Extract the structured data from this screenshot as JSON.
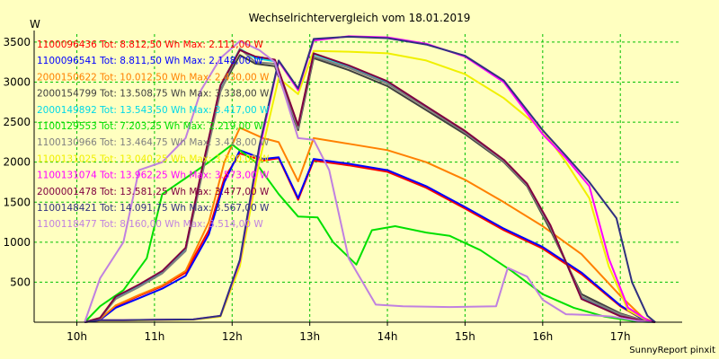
{
  "chart_data": {
    "type": "line",
    "title": "Wechselrichtervergleich vom 18.01.2019",
    "ylabel": "W",
    "xlabel": "",
    "footer": "SunnyReport pinxit",
    "ylim": [
      0,
      3600
    ],
    "xlim": [
      9.45,
      17.75
    ],
    "yticks": [
      500,
      1000,
      1500,
      2000,
      2500,
      3000,
      3500
    ],
    "xticks": [
      10,
      11,
      12,
      13,
      14,
      15,
      16,
      17
    ],
    "xtick_labels": [
      "10h",
      "11h",
      "12h",
      "13h",
      "14h",
      "15h",
      "16h",
      "17h"
    ],
    "grid": true,
    "legend_position": "top-left",
    "series": [
      {
        "name": "1100096436",
        "legend": "1100096436 Tot: 8.812,50 Wh Max: 2.111,00 W",
        "color": "#ff0000",
        "points": [
          [
            10.1,
            0
          ],
          [
            10.3,
            30
          ],
          [
            10.5,
            200
          ],
          [
            10.8,
            330
          ],
          [
            11.1,
            450
          ],
          [
            11.4,
            620
          ],
          [
            11.7,
            1150
          ],
          [
            11.9,
            1800
          ],
          [
            12.1,
            2110
          ],
          [
            12.4,
            2020
          ],
          [
            12.6,
            2050
          ],
          [
            12.85,
            1530
          ],
          [
            13.05,
            2020
          ],
          [
            13.5,
            1960
          ],
          [
            14,
            1880
          ],
          [
            14.5,
            1680
          ],
          [
            15,
            1420
          ],
          [
            15.5,
            1150
          ],
          [
            16,
            920
          ],
          [
            16.5,
            600
          ],
          [
            17,
            200
          ],
          [
            17.3,
            30
          ],
          [
            17.45,
            0
          ]
        ]
      },
      {
        "name": "1100096541",
        "legend": "1100096541 Tot: 8.811,50 Wh Max: 2.148,00 W",
        "color": "#0000ff",
        "points": [
          [
            10.1,
            0
          ],
          [
            10.3,
            30
          ],
          [
            10.5,
            180
          ],
          [
            10.8,
            300
          ],
          [
            11.1,
            420
          ],
          [
            11.4,
            580
          ],
          [
            11.7,
            1100
          ],
          [
            11.9,
            1750
          ],
          [
            12.1,
            2148
          ],
          [
            12.4,
            2040
          ],
          [
            12.6,
            2060
          ],
          [
            12.85,
            1550
          ],
          [
            13.05,
            2040
          ],
          [
            13.5,
            1980
          ],
          [
            14,
            1900
          ],
          [
            14.5,
            1700
          ],
          [
            15,
            1440
          ],
          [
            15.5,
            1170
          ],
          [
            16,
            940
          ],
          [
            16.5,
            620
          ],
          [
            17,
            210
          ],
          [
            17.3,
            30
          ],
          [
            17.45,
            0
          ]
        ]
      },
      {
        "name": "2000150622",
        "legend": "2000150622 Tot: 10.012,50 Wh Max: 2.430,00 W",
        "color": "#ff8000",
        "points": [
          [
            10.1,
            0
          ],
          [
            10.3,
            40
          ],
          [
            10.5,
            210
          ],
          [
            10.8,
            340
          ],
          [
            11.1,
            460
          ],
          [
            11.4,
            640
          ],
          [
            11.7,
            1250
          ],
          [
            11.9,
            2000
          ],
          [
            12.1,
            2430
          ],
          [
            12.4,
            2300
          ],
          [
            12.6,
            2250
          ],
          [
            12.85,
            1760
          ],
          [
            13.05,
            2300
          ],
          [
            13.5,
            2230
          ],
          [
            14,
            2150
          ],
          [
            14.5,
            2000
          ],
          [
            15,
            1780
          ],
          [
            15.5,
            1500
          ],
          [
            16,
            1200
          ],
          [
            16.5,
            850
          ],
          [
            17,
            330
          ],
          [
            17.3,
            50
          ],
          [
            17.45,
            0
          ]
        ]
      },
      {
        "name": "2000154799",
        "legend": "2000154799 Tot: 13.508,75 Wh Max: 3.338,00 W",
        "color": "#404040",
        "points": [
          [
            10.1,
            0
          ],
          [
            10.3,
            50
          ],
          [
            10.5,
            300
          ],
          [
            10.8,
            450
          ],
          [
            11.1,
            620
          ],
          [
            11.4,
            900
          ],
          [
            11.6,
            1800
          ],
          [
            11.85,
            2900
          ],
          [
            12.1,
            3338
          ],
          [
            12.3,
            3230
          ],
          [
            12.55,
            3200
          ],
          [
            12.85,
            2400
          ],
          [
            13.05,
            3300
          ],
          [
            13.5,
            3150
          ],
          [
            14,
            2950
          ],
          [
            14.5,
            2650
          ],
          [
            15,
            2350
          ],
          [
            15.5,
            2000
          ],
          [
            15.8,
            1700
          ],
          [
            16.1,
            1150
          ],
          [
            16.5,
            350
          ],
          [
            17,
            110
          ],
          [
            17.3,
            20
          ],
          [
            17.45,
            0
          ]
        ]
      },
      {
        "name": "2000149892",
        "legend": "2000149892 Tot: 13.543,50 Wh Max: 3.417,00 W",
        "color": "#00d8e8",
        "points": [
          [
            10.1,
            0
          ],
          [
            10.3,
            50
          ],
          [
            10.5,
            310
          ],
          [
            10.8,
            460
          ],
          [
            11.1,
            630
          ],
          [
            11.4,
            920
          ],
          [
            11.6,
            1850
          ],
          [
            11.85,
            2950
          ],
          [
            12.1,
            3417
          ],
          [
            12.3,
            3300
          ],
          [
            12.55,
            3260
          ],
          [
            12.85,
            2450
          ],
          [
            13.05,
            3350
          ],
          [
            13.5,
            3200
          ],
          [
            14,
            3000
          ],
          [
            14.5,
            2700
          ],
          [
            15,
            2380
          ],
          [
            15.5,
            2020
          ],
          [
            15.8,
            1720
          ],
          [
            16.1,
            1200
          ],
          [
            16.5,
            300
          ],
          [
            17,
            80
          ],
          [
            17.3,
            15
          ],
          [
            17.45,
            0
          ]
        ]
      },
      {
        "name": "1100129553",
        "legend": "1100129553 Tot: 7.203,25 Wh Max: 2.219,00 W",
        "color": "#00e000",
        "points": [
          [
            10.1,
            0
          ],
          [
            10.3,
            200
          ],
          [
            10.6,
            400
          ],
          [
            10.9,
            800
          ],
          [
            11.1,
            1600
          ],
          [
            11.4,
            1800
          ],
          [
            11.7,
            2000
          ],
          [
            12,
            2219
          ],
          [
            12.3,
            2000
          ],
          [
            12.6,
            1600
          ],
          [
            12.85,
            1320
          ],
          [
            13.1,
            1310
          ],
          [
            13.3,
            1000
          ],
          [
            13.6,
            720
          ],
          [
            13.8,
            1150
          ],
          [
            14.1,
            1200
          ],
          [
            14.5,
            1120
          ],
          [
            14.8,
            1080
          ],
          [
            15.2,
            900
          ],
          [
            15.6,
            640
          ],
          [
            16,
            350
          ],
          [
            16.4,
            180
          ],
          [
            16.8,
            70
          ],
          [
            17.2,
            10
          ],
          [
            17.4,
            0
          ]
        ]
      },
      {
        "name": "1100130966",
        "legend": "1100130966 Tot: 13.464,75 Wh Max: 3.418,00 W",
        "color": "#808080",
        "points": [
          [
            10.1,
            0
          ],
          [
            10.3,
            50
          ],
          [
            10.5,
            290
          ],
          [
            10.8,
            440
          ],
          [
            11.1,
            610
          ],
          [
            11.4,
            890
          ],
          [
            11.6,
            1780
          ],
          [
            11.85,
            2880
          ],
          [
            12.1,
            3418
          ],
          [
            12.3,
            3250
          ],
          [
            12.55,
            3230
          ],
          [
            12.85,
            2420
          ],
          [
            13.05,
            3320
          ],
          [
            13.5,
            3180
          ],
          [
            14,
            2980
          ],
          [
            14.5,
            2680
          ],
          [
            15,
            2370
          ],
          [
            15.5,
            2010
          ],
          [
            15.8,
            1710
          ],
          [
            16.1,
            1180
          ],
          [
            16.5,
            320
          ],
          [
            17,
            100
          ],
          [
            17.3,
            20
          ],
          [
            17.45,
            0
          ]
        ]
      },
      {
        "name": "1100131025",
        "legend": "1100131025 Tot: 13.040,25 Wh Max: 3.390,00 W",
        "color": "#f0f000",
        "points": [
          [
            10.1,
            0
          ],
          [
            10.3,
            20
          ],
          [
            10.6,
            20
          ],
          [
            11,
            25
          ],
          [
            11.5,
            30
          ],
          [
            11.85,
            70
          ],
          [
            12.1,
            700
          ],
          [
            12.35,
            2000
          ],
          [
            12.6,
            3050
          ],
          [
            12.85,
            2850
          ],
          [
            13.05,
            3390
          ],
          [
            13.5,
            3380
          ],
          [
            14,
            3360
          ],
          [
            14.5,
            3270
          ],
          [
            15,
            3100
          ],
          [
            15.5,
            2800
          ],
          [
            16,
            2400
          ],
          [
            16.3,
            2000
          ],
          [
            16.6,
            1550
          ],
          [
            16.85,
            700
          ],
          [
            17.1,
            150
          ],
          [
            17.35,
            20
          ],
          [
            17.45,
            0
          ]
        ]
      },
      {
        "name": "1100131074",
        "legend": "1100131074 Tot: 13.962,25 Wh Max: 3.573,00 W",
        "color": "#ff00ff",
        "points": [
          [
            10.1,
            0
          ],
          [
            10.3,
            25
          ],
          [
            10.6,
            25
          ],
          [
            11,
            30
          ],
          [
            11.5,
            35
          ],
          [
            11.85,
            80
          ],
          [
            12.1,
            760
          ],
          [
            12.35,
            2150
          ],
          [
            12.6,
            3260
          ],
          [
            12.85,
            2900
          ],
          [
            13.05,
            3520
          ],
          [
            13.5,
            3573
          ],
          [
            14,
            3560
          ],
          [
            14.5,
            3480
          ],
          [
            15,
            3320
          ],
          [
            15.5,
            3000
          ],
          [
            16,
            2350
          ],
          [
            16.3,
            2050
          ],
          [
            16.6,
            1700
          ],
          [
            16.85,
            800
          ],
          [
            17.1,
            180
          ],
          [
            17.35,
            25
          ],
          [
            17.45,
            0
          ]
        ]
      },
      {
        "name": "2000001478",
        "legend": "2000001478 Tot: 13.581,25 Wh Max: 3.477,00 W",
        "color": "#800040",
        "points": [
          [
            10.1,
            0
          ],
          [
            10.3,
            55
          ],
          [
            10.5,
            320
          ],
          [
            10.8,
            470
          ],
          [
            11.1,
            640
          ],
          [
            11.4,
            930
          ],
          [
            11.6,
            1860
          ],
          [
            11.85,
            2960
          ],
          [
            12.1,
            3400
          ],
          [
            12.3,
            3320
          ],
          [
            12.55,
            3280
          ],
          [
            12.85,
            2460
          ],
          [
            13.05,
            3360
          ],
          [
            13.5,
            3210
          ],
          [
            14,
            3010
          ],
          [
            14.5,
            2700
          ],
          [
            15,
            2390
          ],
          [
            15.5,
            2030
          ],
          [
            15.8,
            1730
          ],
          [
            16.1,
            1210
          ],
          [
            16.5,
            290
          ],
          [
            17,
            75
          ],
          [
            17.3,
            15
          ],
          [
            17.45,
            0
          ]
        ]
      },
      {
        "name": "1100148421",
        "legend": "1100148421 Tot: 14.091,75 Wh Max: 3.567,00 W",
        "color": "#303080",
        "points": [
          [
            10.1,
            0
          ],
          [
            10.3,
            25
          ],
          [
            10.6,
            25
          ],
          [
            11,
            30
          ],
          [
            11.5,
            35
          ],
          [
            11.85,
            80
          ],
          [
            12.1,
            780
          ],
          [
            12.35,
            2200
          ],
          [
            12.6,
            3270
          ],
          [
            12.85,
            2920
          ],
          [
            13.05,
            3540
          ],
          [
            13.5,
            3567
          ],
          [
            14,
            3550
          ],
          [
            14.5,
            3470
          ],
          [
            15,
            3330
          ],
          [
            15.5,
            3020
          ],
          [
            16,
            2400
          ],
          [
            16.3,
            2080
          ],
          [
            16.6,
            1750
          ],
          [
            16.95,
            1300
          ],
          [
            17.15,
            500
          ],
          [
            17.35,
            80
          ],
          [
            17.45,
            0
          ]
        ]
      },
      {
        "name": "1100118477",
        "legend": "1100118477 Tot: 8.160,00 Wh Max: 3.514,00 W",
        "color": "#c080e0",
        "points": [
          [
            10.1,
            0
          ],
          [
            10.3,
            550
          ],
          [
            10.6,
            1000
          ],
          [
            10.8,
            1900
          ],
          [
            11.1,
            2000
          ],
          [
            11.4,
            2300
          ],
          [
            11.6,
            2900
          ],
          [
            11.85,
            3300
          ],
          [
            12.1,
            3514
          ],
          [
            12.35,
            3400
          ],
          [
            12.55,
            3250
          ],
          [
            12.85,
            2300
          ],
          [
            13.05,
            2280
          ],
          [
            13.25,
            1900
          ],
          [
            13.5,
            800
          ],
          [
            13.85,
            220
          ],
          [
            14.2,
            200
          ],
          [
            14.8,
            190
          ],
          [
            15.4,
            200
          ],
          [
            15.55,
            680
          ],
          [
            15.8,
            570
          ],
          [
            16,
            280
          ],
          [
            16.3,
            100
          ],
          [
            16.6,
            90
          ],
          [
            16.9,
            70
          ],
          [
            17.2,
            20
          ],
          [
            17.4,
            0
          ]
        ]
      }
    ]
  }
}
